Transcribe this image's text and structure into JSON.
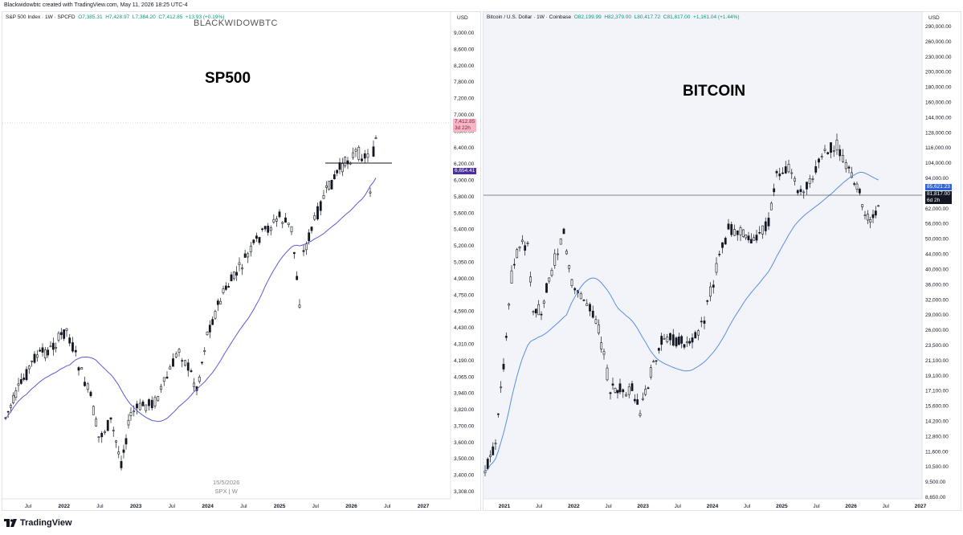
{
  "header": {
    "text": "Blackwidowbtc created with TradingView.com, May 11, 2026 18:25 UTC-4"
  },
  "footer": {
    "brand": "TradingView"
  },
  "colors": {
    "ma": "#5b5bd6",
    "ma_right": "#5a8fe0",
    "left_current_tag": "#f7b6c6",
    "left_ma_tag": "#4a2fa0",
    "right_ma_tag": "#2f63e0",
    "right_current_tag": "#131722"
  },
  "left": {
    "legend": {
      "symbol": "S&P 500 Index · 1W · SPCFD",
      "open": "O7,385.31",
      "high": "H7,428.97",
      "low": "L7,384.20",
      "close": "C7,412.85",
      "change": "+13.93 (+0.19%)"
    },
    "watermark_top": "BLACKWIDOWBTC",
    "big_title": "SP500",
    "watermark_bottom_date": "15/5/2026",
    "watermark_bottom_symbol": "SPX | W",
    "currency": "USD",
    "current_price": "7,412.85",
    "current_countdown": "3d 22h",
    "ma_price": "6,654.41",
    "y_ticks": [
      "9,000.00",
      "8,600.00",
      "8,200.00",
      "7,800.00",
      "7,200.00",
      "7,000.00",
      "6,800.00",
      "6,400.00",
      "6,200.00",
      "6,000.00",
      "5,800.00",
      "5,600.00",
      "5,400.00",
      "5,200.00",
      "5,050.00",
      "4,900.00",
      "4,750.00",
      "4,590.00",
      "4,430.00",
      "4,310.00",
      "4,190.00",
      "4,065.00",
      "3,940.00",
      "3,820.00",
      "3,700.00",
      "3,600.00",
      "3,500.00",
      "3,400.00",
      "3,308.00"
    ],
    "x_ticks": [
      "Jul",
      "2022",
      "Jul",
      "2023",
      "Jul",
      "2024",
      "Jul",
      "2025",
      "Jul",
      "2026",
      "Jul",
      "2027"
    ]
  },
  "right": {
    "legend": {
      "symbol": "Bitcoin / U.S. Dollar · 1W · Coinbase",
      "open": "O82,199.99",
      "high": "H82,379.00",
      "low": "L80,417.72",
      "close": "C81,817.00",
      "change": "+1,161.04 (+1.44%)"
    },
    "big_title": "BITCOIN",
    "currency": "USD",
    "current_price": "81,817.00",
    "current_countdown": "6d 2h",
    "ma_price": "85,621.23",
    "y_ticks": [
      "290,000.00",
      "260,000.00",
      "230,000.00",
      "200,000.00",
      "180,000.00",
      "160,000.00",
      "144,000.00",
      "128,000.00",
      "116,000.00",
      "104,000.00",
      "94,000.00",
      "68,000.00",
      "62,000.00",
      "56,000.00",
      "50,000.00",
      "44,000.00",
      "40,000.00",
      "36,000.00",
      "32,000.00",
      "29,000.00",
      "26,000.00",
      "23,500.00",
      "21,100.00",
      "19,100.00",
      "17,100.00",
      "15,600.00",
      "14,200.00",
      "12,800.00",
      "11,600.00",
      "10,500.00",
      "9,500.00",
      "8,650.00"
    ],
    "x_ticks": [
      "2021",
      "Jul",
      "2022",
      "Jul",
      "2023",
      "Jul",
      "2024",
      "Jul",
      "2025",
      "Jul",
      "2026",
      "Jul",
      "2027"
    ]
  }
}
